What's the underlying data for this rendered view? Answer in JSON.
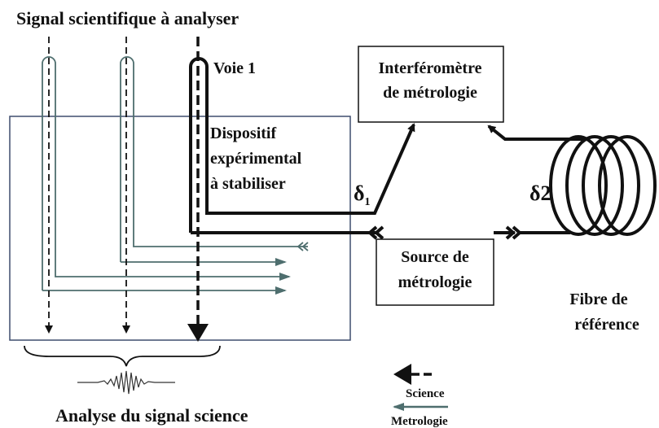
{
  "title": "Signal scientifique à analyser",
  "channel_label": "Voie 1",
  "nodes": [
    {
      "id": "interferometre",
      "lines": [
        "Interféromètre",
        "de métrologie"
      ]
    },
    {
      "id": "dispositif",
      "lines": [
        "Dispositif",
        "expérimental",
        "à stabiliser"
      ]
    },
    {
      "id": "source",
      "lines": [
        "Source de",
        "métrologie"
      ]
    },
    {
      "id": "fibre",
      "lines": [
        "Fibre de",
        "référence"
      ]
    }
  ],
  "delta1": {
    "symbol": "δ",
    "sub": "1"
  },
  "delta2": "δ2",
  "output_label": "Analyse du signal science",
  "legend": {
    "science": "Science",
    "metrologie": "Metrologie"
  }
}
